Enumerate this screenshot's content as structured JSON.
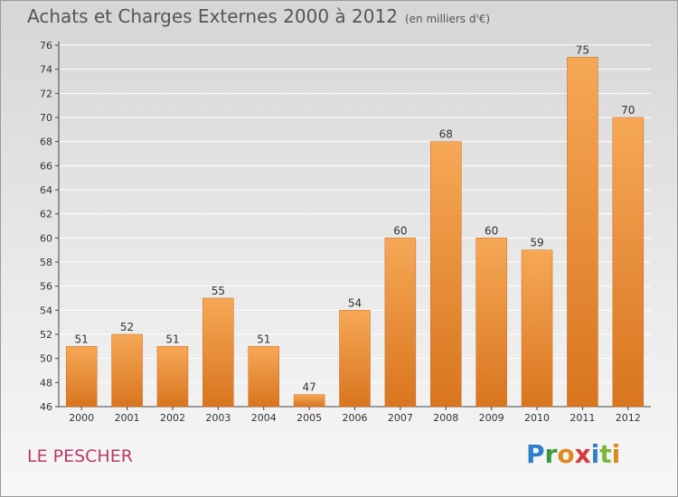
{
  "title": "Achats et Charges Externes 2000 à 2012",
  "unit": "(en milliers d'€)",
  "commune": "LE PESCHER",
  "brand": {
    "text": "Proxiti",
    "letter_colors": [
      "#2e7fc8",
      "#3a9a3a",
      "#e08a1c",
      "#d83a3a",
      "#2e7fc8",
      "#7ab83a",
      "#e08a1c"
    ]
  },
  "colors": {
    "bar_light": "#f6a856",
    "bar_dark": "#d9751f",
    "axis": "#444444",
    "grid": "#ffffff",
    "label": "#333333"
  },
  "chart_data": {
    "type": "bar",
    "title": "Achats et Charges Externes 2000 à 2012",
    "categories": [
      "2000",
      "2001",
      "2002",
      "2003",
      "2004",
      "2005",
      "2006",
      "2007",
      "2008",
      "2009",
      "2010",
      "2011",
      "2012"
    ],
    "values": [
      51,
      52,
      51,
      55,
      51,
      47,
      54,
      60,
      68,
      60,
      59,
      75,
      70
    ],
    "ylim": [
      46,
      76
    ],
    "yticks": [
      46,
      48,
      50,
      52,
      54,
      56,
      58,
      60,
      62,
      64,
      66,
      68,
      70,
      72,
      74,
      76
    ],
    "grid": true,
    "data_labels": true
  }
}
